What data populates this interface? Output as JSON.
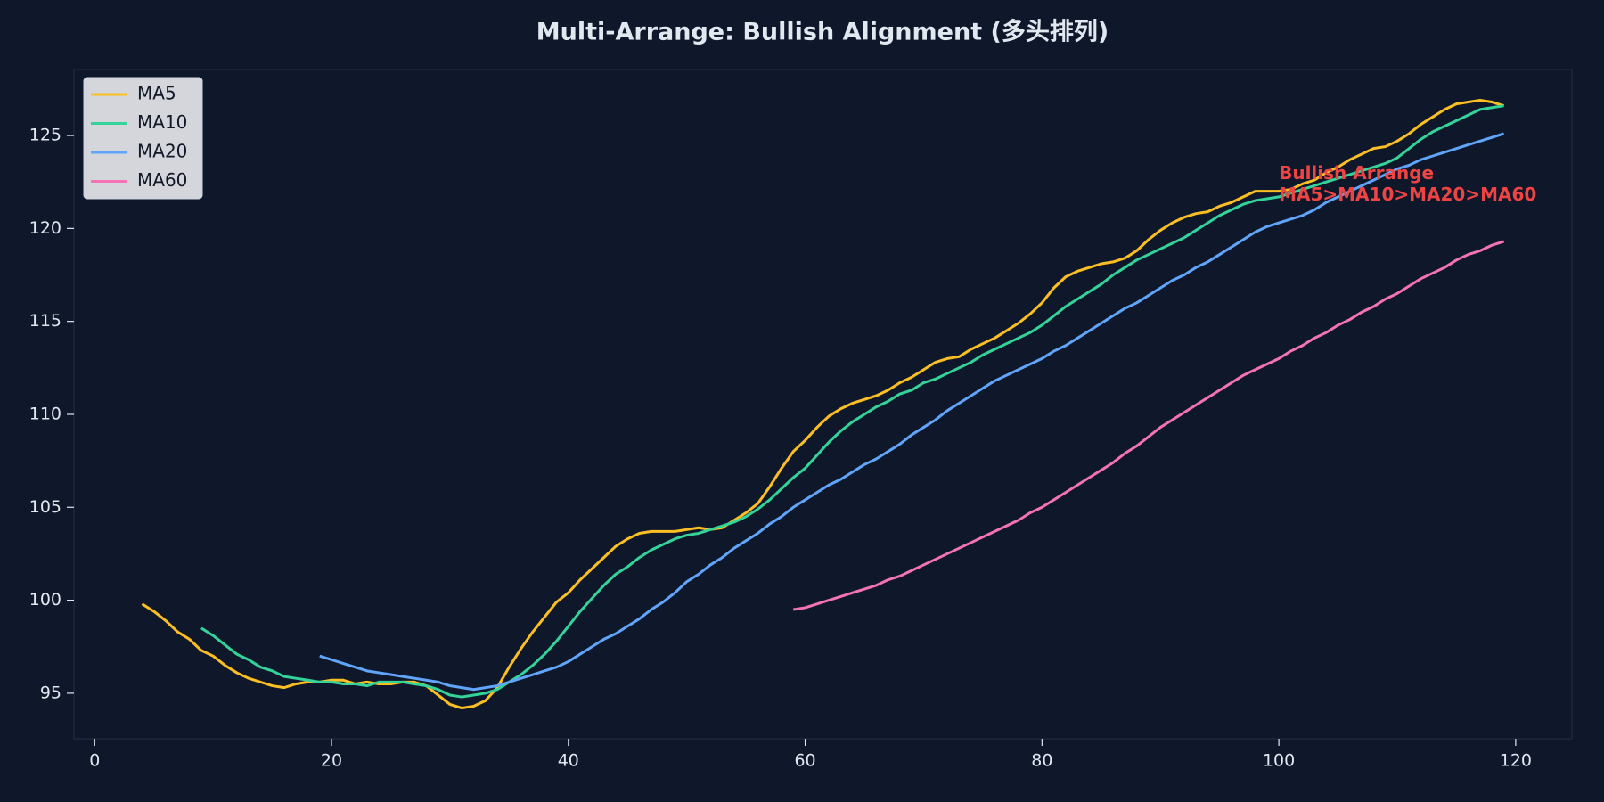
{
  "chart_data": {
    "type": "line",
    "title": "Multi-Arrange: Bullish Alignment (多头排列)",
    "x": [
      0,
      1,
      2,
      3,
      4,
      5,
      6,
      7,
      8,
      9,
      10,
      11,
      12,
      13,
      14,
      15,
      16,
      17,
      18,
      19,
      20,
      21,
      22,
      23,
      24,
      25,
      26,
      27,
      28,
      29,
      30,
      31,
      32,
      33,
      34,
      35,
      36,
      37,
      38,
      39,
      40,
      41,
      42,
      43,
      44,
      45,
      46,
      47,
      48,
      49,
      50,
      51,
      52,
      53,
      54,
      55,
      56,
      57,
      58,
      59,
      60,
      61,
      62,
      63,
      64,
      65,
      66,
      67,
      68,
      69,
      70,
      71,
      72,
      73,
      74,
      75,
      76,
      77,
      78,
      79,
      80,
      81,
      82,
      83,
      84,
      85,
      86,
      87,
      88,
      89,
      90,
      91,
      92,
      93,
      94,
      95,
      96,
      97,
      98,
      99,
      100,
      101,
      102,
      103,
      104,
      105,
      106,
      107,
      108,
      109,
      110,
      111,
      112,
      113,
      114,
      115,
      116,
      117,
      118,
      119
    ],
    "series": [
      {
        "name": "MA5",
        "color": "#fbbf24",
        "values": [
          null,
          null,
          null,
          null,
          99.8,
          99.4,
          98.9,
          98.3,
          97.9,
          97.3,
          97.0,
          96.5,
          96.1,
          95.8,
          95.6,
          95.4,
          95.3,
          95.5,
          95.6,
          95.6,
          95.7,
          95.7,
          95.5,
          95.6,
          95.5,
          95.5,
          95.6,
          95.6,
          95.4,
          94.9,
          94.4,
          94.2,
          94.3,
          94.6,
          95.3,
          96.4,
          97.4,
          98.3,
          99.1,
          99.9,
          100.4,
          101.1,
          101.7,
          102.3,
          102.9,
          103.3,
          103.6,
          103.7,
          103.7,
          103.7,
          103.8,
          103.9,
          103.8,
          103.9,
          104.3,
          104.7,
          105.2,
          106.1,
          107.1,
          108.0,
          108.6,
          109.3,
          109.9,
          110.3,
          110.6,
          110.8,
          111.0,
          111.3,
          111.7,
          112.0,
          112.4,
          112.8,
          113.0,
          113.1,
          113.5,
          113.8,
          114.1,
          114.5,
          114.9,
          115.4,
          116.0,
          116.8,
          117.4,
          117.7,
          117.9,
          118.1,
          118.2,
          118.4,
          118.8,
          119.4,
          119.9,
          120.3,
          120.6,
          120.8,
          120.9,
          121.2,
          121.4,
          121.7,
          122.0,
          122.0,
          122.0,
          122.1,
          122.4,
          122.6,
          123.0,
          123.3,
          123.7,
          124.0,
          124.3,
          124.4,
          124.7,
          125.1,
          125.6,
          126.0,
          126.4,
          126.7,
          126.8,
          126.9,
          126.8,
          126.6
        ]
      },
      {
        "name": "MA10",
        "color": "#34d399",
        "values": [
          null,
          null,
          null,
          null,
          null,
          null,
          null,
          null,
          null,
          98.5,
          98.1,
          97.6,
          97.1,
          96.8,
          96.4,
          96.2,
          95.9,
          95.8,
          95.7,
          95.6,
          95.6,
          95.5,
          95.5,
          95.4,
          95.6,
          95.6,
          95.6,
          95.5,
          95.4,
          95.2,
          94.9,
          94.8,
          94.9,
          95.0,
          95.2,
          95.6,
          96.0,
          96.5,
          97.1,
          97.8,
          98.6,
          99.4,
          100.1,
          100.8,
          101.4,
          101.8,
          102.3,
          102.7,
          103.0,
          103.3,
          103.5,
          103.6,
          103.8,
          104.0,
          104.2,
          104.5,
          104.9,
          105.4,
          106.0,
          106.6,
          107.1,
          107.8,
          108.5,
          109.1,
          109.6,
          110.0,
          110.4,
          110.7,
          111.1,
          111.3,
          111.7,
          111.9,
          112.2,
          112.5,
          112.8,
          113.2,
          113.5,
          113.8,
          114.1,
          114.4,
          114.8,
          115.3,
          115.8,
          116.2,
          116.6,
          117.0,
          117.5,
          117.9,
          118.3,
          118.6,
          118.9,
          119.2,
          119.5,
          119.9,
          120.3,
          120.7,
          121.0,
          121.3,
          121.5,
          121.6,
          121.7,
          121.9,
          122.1,
          122.3,
          122.5,
          122.7,
          122.9,
          123.1,
          123.3,
          123.5,
          123.8,
          124.3,
          124.8,
          125.2,
          125.5,
          125.8,
          126.1,
          126.4,
          126.5,
          126.6
        ]
      },
      {
        "name": "MA20",
        "color": "#60a5fa",
        "values": [
          null,
          null,
          null,
          null,
          null,
          null,
          null,
          null,
          null,
          null,
          null,
          null,
          null,
          null,
          null,
          null,
          null,
          null,
          null,
          97.0,
          96.8,
          96.6,
          96.4,
          96.2,
          96.1,
          96.0,
          95.9,
          95.8,
          95.7,
          95.6,
          95.4,
          95.3,
          95.2,
          95.3,
          95.4,
          95.6,
          95.8,
          96.0,
          96.2,
          96.4,
          96.7,
          97.1,
          97.5,
          97.9,
          98.2,
          98.6,
          99.0,
          99.5,
          99.9,
          100.4,
          101.0,
          101.4,
          101.9,
          102.3,
          102.8,
          103.2,
          103.6,
          104.1,
          104.5,
          105.0,
          105.4,
          105.8,
          106.2,
          106.5,
          106.9,
          107.3,
          107.6,
          108.0,
          108.4,
          108.9,
          109.3,
          109.7,
          110.2,
          110.6,
          111.0,
          111.4,
          111.8,
          112.1,
          112.4,
          112.7,
          113.0,
          113.4,
          113.7,
          114.1,
          114.5,
          114.9,
          115.3,
          115.7,
          116.0,
          116.4,
          116.8,
          117.2,
          117.5,
          117.9,
          118.2,
          118.6,
          119.0,
          119.4,
          119.8,
          120.1,
          120.3,
          120.5,
          120.7,
          121.0,
          121.4,
          121.7,
          122.0,
          122.3,
          122.6,
          122.9,
          123.2,
          123.4,
          123.7,
          123.9,
          124.1,
          124.3,
          124.5,
          124.7,
          124.9,
          125.1
        ]
      },
      {
        "name": "MA60",
        "color": "#f472b6",
        "values": [
          null,
          null,
          null,
          null,
          null,
          null,
          null,
          null,
          null,
          null,
          null,
          null,
          null,
          null,
          null,
          null,
          null,
          null,
          null,
          null,
          null,
          null,
          null,
          null,
          null,
          null,
          null,
          null,
          null,
          null,
          null,
          null,
          null,
          null,
          null,
          null,
          null,
          null,
          null,
          null,
          null,
          null,
          null,
          null,
          null,
          null,
          null,
          null,
          null,
          null,
          null,
          null,
          null,
          null,
          null,
          null,
          null,
          null,
          null,
          99.5,
          99.6,
          99.8,
          100.0,
          100.2,
          100.4,
          100.6,
          100.8,
          101.1,
          101.3,
          101.6,
          101.9,
          102.2,
          102.5,
          102.8,
          103.1,
          103.4,
          103.7,
          104.0,
          104.3,
          104.7,
          105.0,
          105.4,
          105.8,
          106.2,
          106.6,
          107.0,
          107.4,
          107.9,
          108.3,
          108.8,
          109.3,
          109.7,
          110.1,
          110.5,
          110.9,
          111.3,
          111.7,
          112.1,
          112.4,
          112.7,
          113.0,
          113.4,
          113.7,
          114.1,
          114.4,
          114.8,
          115.1,
          115.5,
          115.8,
          116.2,
          116.5,
          116.9,
          117.3,
          117.6,
          117.9,
          118.3,
          118.6,
          118.8,
          119.1,
          119.3
        ]
      }
    ],
    "annotation": [
      "Bullish Arrange",
      "MA5>MA10>MA20>MA60"
    ],
    "annotation_color": "#ef4444",
    "xlim": [
      -1.75,
      124.75
    ],
    "xticks": [
      0,
      20,
      40,
      60,
      80,
      100,
      120
    ],
    "ylim": [
      92.55,
      128.55
    ],
    "yticks": [
      95,
      100,
      105,
      110,
      115,
      120,
      125
    ],
    "grid": false,
    "legend": "upper left"
  }
}
